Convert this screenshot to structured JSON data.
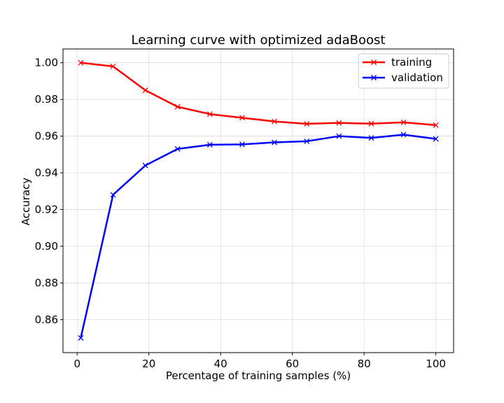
{
  "chart_data": {
    "type": "line",
    "title": "Learning curve with optimized adaBoost",
    "xlabel": "Percentage of training samples (%)",
    "ylabel": "Accuracy",
    "xlim": [
      -3.95,
      104.95
    ],
    "ylim": [
      0.842,
      1.0075
    ],
    "xticks": [
      0,
      20,
      40,
      60,
      80,
      100
    ],
    "xtick_labels": [
      "0",
      "20",
      "40",
      "60",
      "80",
      "100"
    ],
    "yticks": [
      0.86,
      0.88,
      0.9,
      0.92,
      0.94,
      0.96,
      0.98,
      1.0
    ],
    "ytick_labels": [
      "0.86",
      "0.88",
      "0.90",
      "0.92",
      "0.94",
      "0.96",
      "0.98",
      "1.00"
    ],
    "grid": true,
    "legend_position": "top-right",
    "x": [
      1,
      10,
      19,
      28,
      37,
      46,
      55,
      64,
      73,
      82,
      91,
      100
    ],
    "series": [
      {
        "name": "training",
        "color": "#ff0000",
        "marker": "x",
        "values": [
          1.0,
          0.998,
          0.985,
          0.976,
          0.972,
          0.97,
          0.968,
          0.9667,
          0.9672,
          0.9668,
          0.9675,
          0.966
        ]
      },
      {
        "name": "validation",
        "color": "#0000ff",
        "marker": "x",
        "values": [
          0.85,
          0.928,
          0.944,
          0.953,
          0.9553,
          0.9555,
          0.9566,
          0.9572,
          0.96,
          0.959,
          0.9608,
          0.9585
        ]
      }
    ]
  }
}
